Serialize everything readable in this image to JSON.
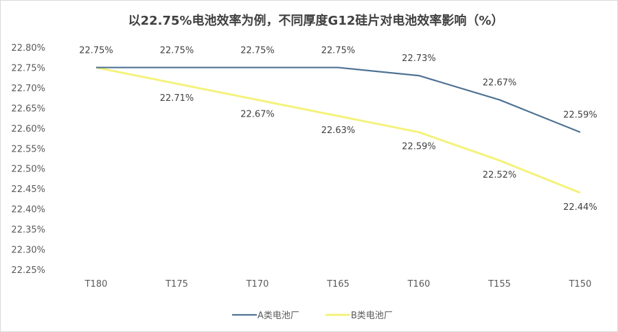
{
  "chart_data": {
    "type": "line",
    "title": "以22.75%电池效率为例，不同厚度G12硅片对电池效率影响（%）",
    "xlabel": "",
    "ylabel": "",
    "categories": [
      "T180",
      "T175",
      "T170",
      "T165",
      "T160",
      "T155",
      "T150"
    ],
    "ylim": [
      22.25,
      22.8
    ],
    "ytick_step": 0.05,
    "ytick_format": "0.00%",
    "grid": false,
    "legend_position": "bottom",
    "series": [
      {
        "name": "A类电池厂",
        "color": "#4f7293",
        "values": [
          22.75,
          22.75,
          22.75,
          22.75,
          22.73,
          22.67,
          22.59
        ],
        "labels": [
          "22.75%",
          "22.75%",
          "22.75%",
          "22.75%",
          "22.73%",
          "22.67%",
          "22.59%"
        ]
      },
      {
        "name": "B类电池厂",
        "color": "#f4f27a",
        "values": [
          22.75,
          22.71,
          22.67,
          22.63,
          22.59,
          22.52,
          22.44
        ],
        "labels": [
          "",
          "22.71%",
          "22.67%",
          "22.63%",
          "22.59%",
          "22.52%",
          "22.44%"
        ]
      }
    ]
  }
}
